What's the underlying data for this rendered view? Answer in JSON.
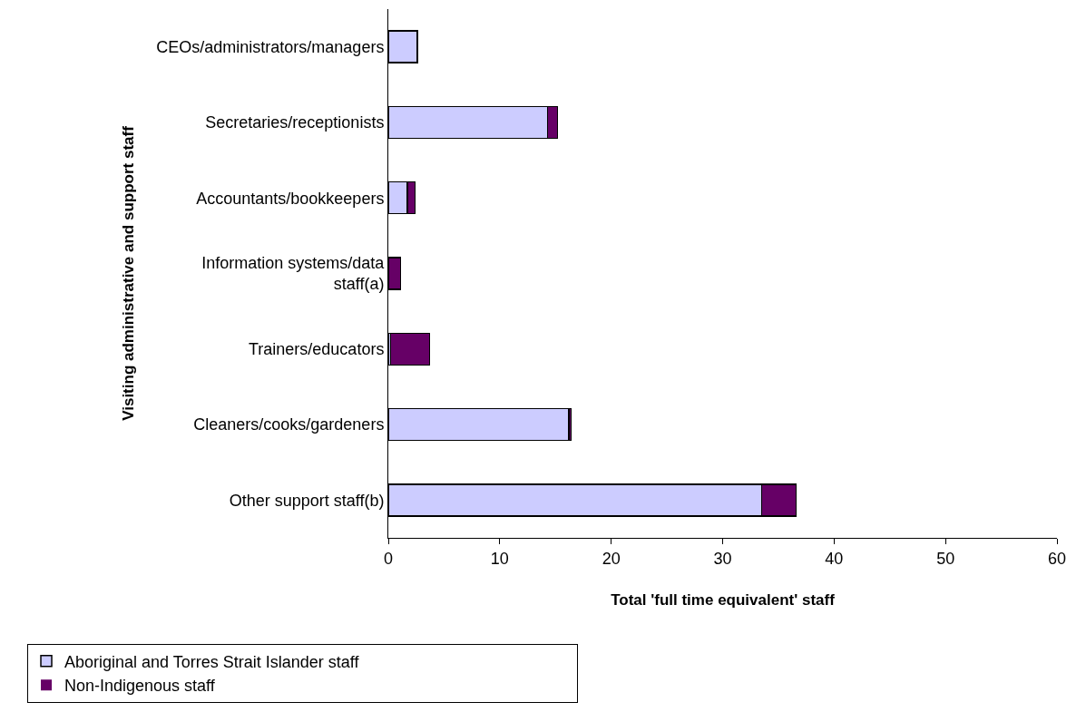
{
  "chart_data": {
    "type": "bar",
    "orientation": "horizontal",
    "stacked": true,
    "categories": [
      "CEOs/administrators/managers",
      "Secretaries/receptionists",
      "Accountants/bookkeepers",
      "Information systems/data staff(a)",
      "Trainers/educators",
      "Cleaners/cooks/gardeners",
      "Other support staff(b)"
    ],
    "series": [
      {
        "name": "Aboriginal and Torres Strait Islander staff",
        "color": "#ccccff",
        "values": [
          2.6,
          14.3,
          1.7,
          0,
          0.2,
          16.2,
          33.5
        ]
      },
      {
        "name": "Non-Indigenous staff",
        "color": "#660066",
        "values": [
          0,
          0.9,
          0.7,
          1.1,
          3.5,
          0.2,
          3.1
        ]
      }
    ],
    "xlim": [
      0,
      60
    ],
    "xticks": [
      0,
      10,
      20,
      30,
      40,
      50,
      60
    ],
    "xlabel": "Total 'full time equivalent' staff",
    "ylabel": "Visiting administrative and support staff",
    "grid": false,
    "legend": "bottom"
  }
}
